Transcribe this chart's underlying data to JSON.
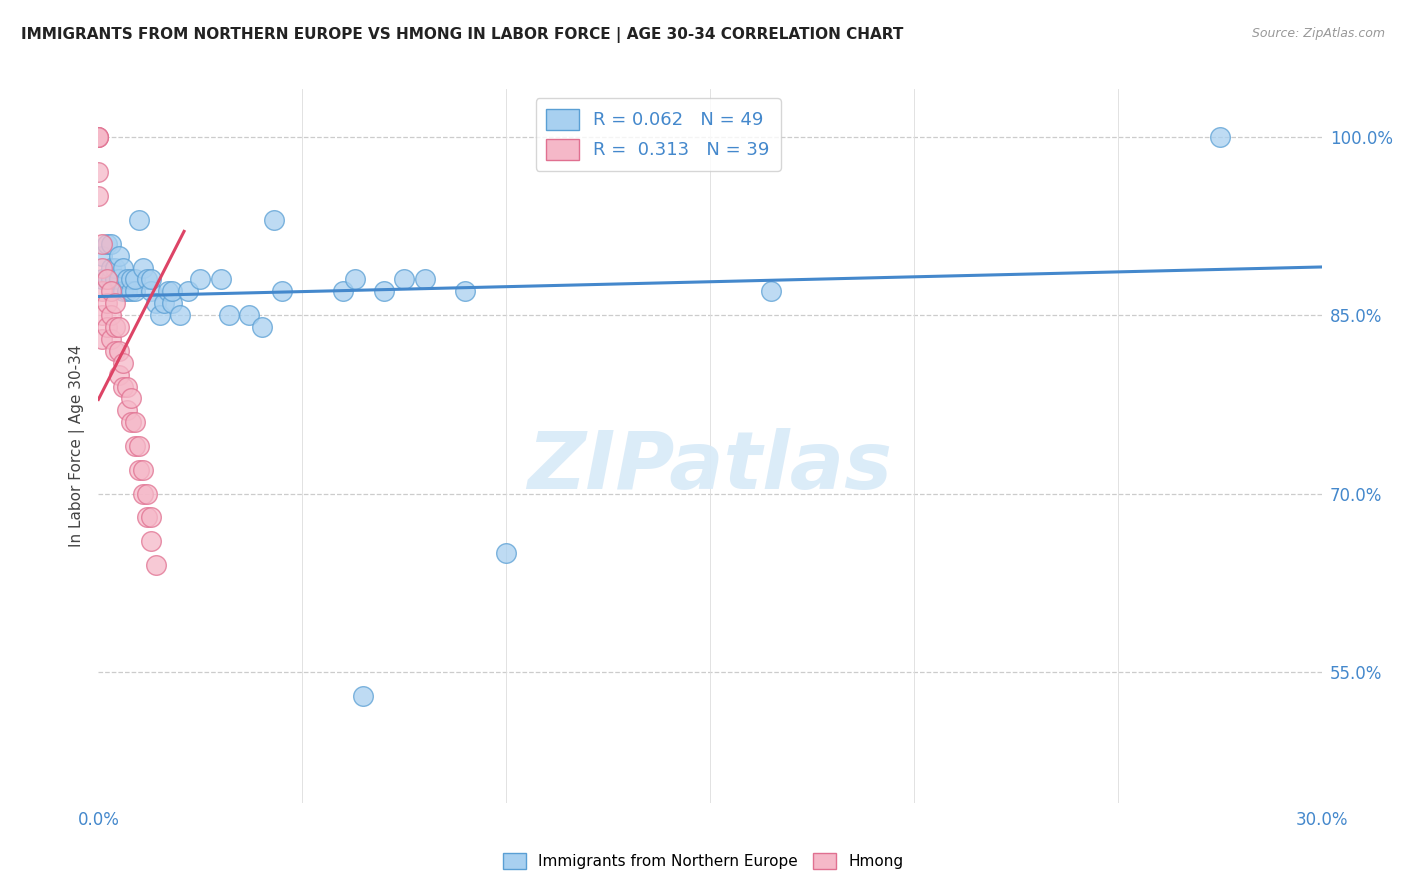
{
  "title": "IMMIGRANTS FROM NORTHERN EUROPE VS HMONG IN LABOR FORCE | AGE 30-34 CORRELATION CHART",
  "source": "Source: ZipAtlas.com",
  "ylabel": "In Labor Force | Age 30-34",
  "xlim": [
    0.0,
    0.3
  ],
  "ylim": [
    0.44,
    1.04
  ],
  "ytick_positions": [
    0.55,
    0.7,
    0.85,
    1.0
  ],
  "ytick_labels": [
    "55.0%",
    "70.0%",
    "85.0%",
    "100.0%"
  ],
  "legend_labels": [
    "Immigrants from Northern Europe",
    "Hmong"
  ],
  "R_blue": 0.062,
  "N_blue": 49,
  "R_pink": 0.313,
  "N_pink": 39,
  "blue_color": "#a8d0f0",
  "pink_color": "#f5b8c8",
  "blue_edge_color": "#5a9fd4",
  "pink_edge_color": "#e07090",
  "blue_line_color": "#4488cc",
  "pink_line_color": "#dd4466",
  "watermark_color": "#d8eaf8",
  "watermark": "ZIPatlas",
  "grid_color": "#cccccc",
  "tick_color": "#4488cc",
  "blue_scatter_x": [
    0.001,
    0.001,
    0.002,
    0.002,
    0.003,
    0.003,
    0.003,
    0.004,
    0.004,
    0.005,
    0.005,
    0.006,
    0.006,
    0.007,
    0.007,
    0.008,
    0.008,
    0.009,
    0.009,
    0.01,
    0.011,
    0.012,
    0.013,
    0.013,
    0.014,
    0.015,
    0.016,
    0.017,
    0.018,
    0.018,
    0.02,
    0.022,
    0.025,
    0.03,
    0.032,
    0.037,
    0.04,
    0.043,
    0.045,
    0.06,
    0.063,
    0.065,
    0.07,
    0.075,
    0.08,
    0.09,
    0.1,
    0.165,
    0.275
  ],
  "blue_scatter_y": [
    0.88,
    0.9,
    0.88,
    0.91,
    0.88,
    0.89,
    0.91,
    0.88,
    0.89,
    0.88,
    0.9,
    0.87,
    0.89,
    0.87,
    0.88,
    0.87,
    0.88,
    0.87,
    0.88,
    0.93,
    0.89,
    0.88,
    0.87,
    0.88,
    0.86,
    0.85,
    0.86,
    0.87,
    0.86,
    0.87,
    0.85,
    0.87,
    0.88,
    0.88,
    0.85,
    0.85,
    0.84,
    0.93,
    0.87,
    0.87,
    0.88,
    0.53,
    0.87,
    0.88,
    0.88,
    0.87,
    0.65,
    0.87,
    1.0
  ],
  "pink_scatter_x": [
    0.0,
    0.0,
    0.0,
    0.0,
    0.0,
    0.001,
    0.001,
    0.001,
    0.001,
    0.001,
    0.002,
    0.002,
    0.002,
    0.003,
    0.003,
    0.003,
    0.004,
    0.004,
    0.004,
    0.005,
    0.005,
    0.005,
    0.006,
    0.006,
    0.007,
    0.007,
    0.008,
    0.008,
    0.009,
    0.009,
    0.01,
    0.01,
    0.011,
    0.011,
    0.012,
    0.012,
    0.013,
    0.013,
    0.014
  ],
  "pink_scatter_y": [
    1.0,
    1.0,
    1.0,
    0.97,
    0.95,
    0.91,
    0.89,
    0.87,
    0.85,
    0.83,
    0.88,
    0.86,
    0.84,
    0.87,
    0.85,
    0.83,
    0.86,
    0.84,
    0.82,
    0.84,
    0.82,
    0.8,
    0.81,
    0.79,
    0.79,
    0.77,
    0.78,
    0.76,
    0.76,
    0.74,
    0.74,
    0.72,
    0.72,
    0.7,
    0.7,
    0.68,
    0.68,
    0.66,
    0.64
  ]
}
